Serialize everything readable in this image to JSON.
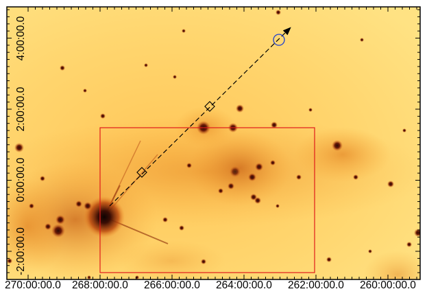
{
  "figure": {
    "x_axis": {
      "tick_labels": [
        "270:00:00.0",
        "268:00:00.0",
        "266:00:00.0",
        "264:00:00.0",
        "262:00:00.0",
        "260:00:00.0"
      ]
    },
    "y_axis": {
      "tick_labels": [
        "-2:00:00.0",
        "0:00:00.0",
        "2:00:00.0",
        "4:00:00.0"
      ]
    },
    "colors": {
      "frame": "#000000",
      "survey_box": "#e01a1a",
      "target_circle": "#1c3ecf",
      "arrow": "#000000",
      "background_emission": "#ffd36a"
    },
    "annotations": {
      "box": "red rectangle region",
      "arrow": "dashed arrow from bright source to circled target",
      "markers": "two open diamonds along the arrow path"
    }
  }
}
